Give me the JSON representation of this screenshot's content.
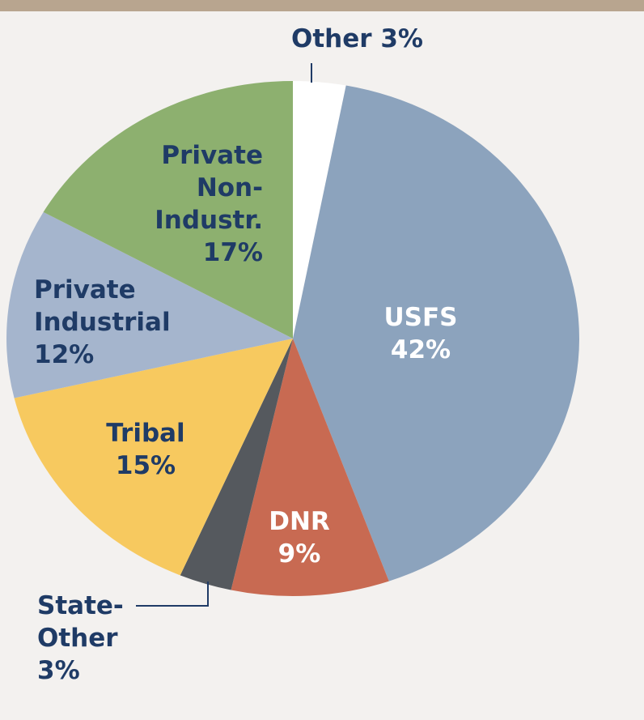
{
  "chart_data": {
    "type": "pie",
    "categories": [
      "Other",
      "USFS",
      "DNR",
      "State-Other",
      "Tribal",
      "Private Industrial",
      "Private Non-Industr."
    ],
    "values": [
      3,
      42,
      9,
      3,
      15,
      12,
      17
    ],
    "value_labels": [
      "3%",
      "42%",
      "9%",
      "3%",
      "15%",
      "12%",
      "17%"
    ],
    "colors": [
      "#ffffff",
      "#8ca3bd",
      "#c86a52",
      "#55595e",
      "#f7c95f",
      "#a5b5cd",
      "#8db06f"
    ]
  }
}
